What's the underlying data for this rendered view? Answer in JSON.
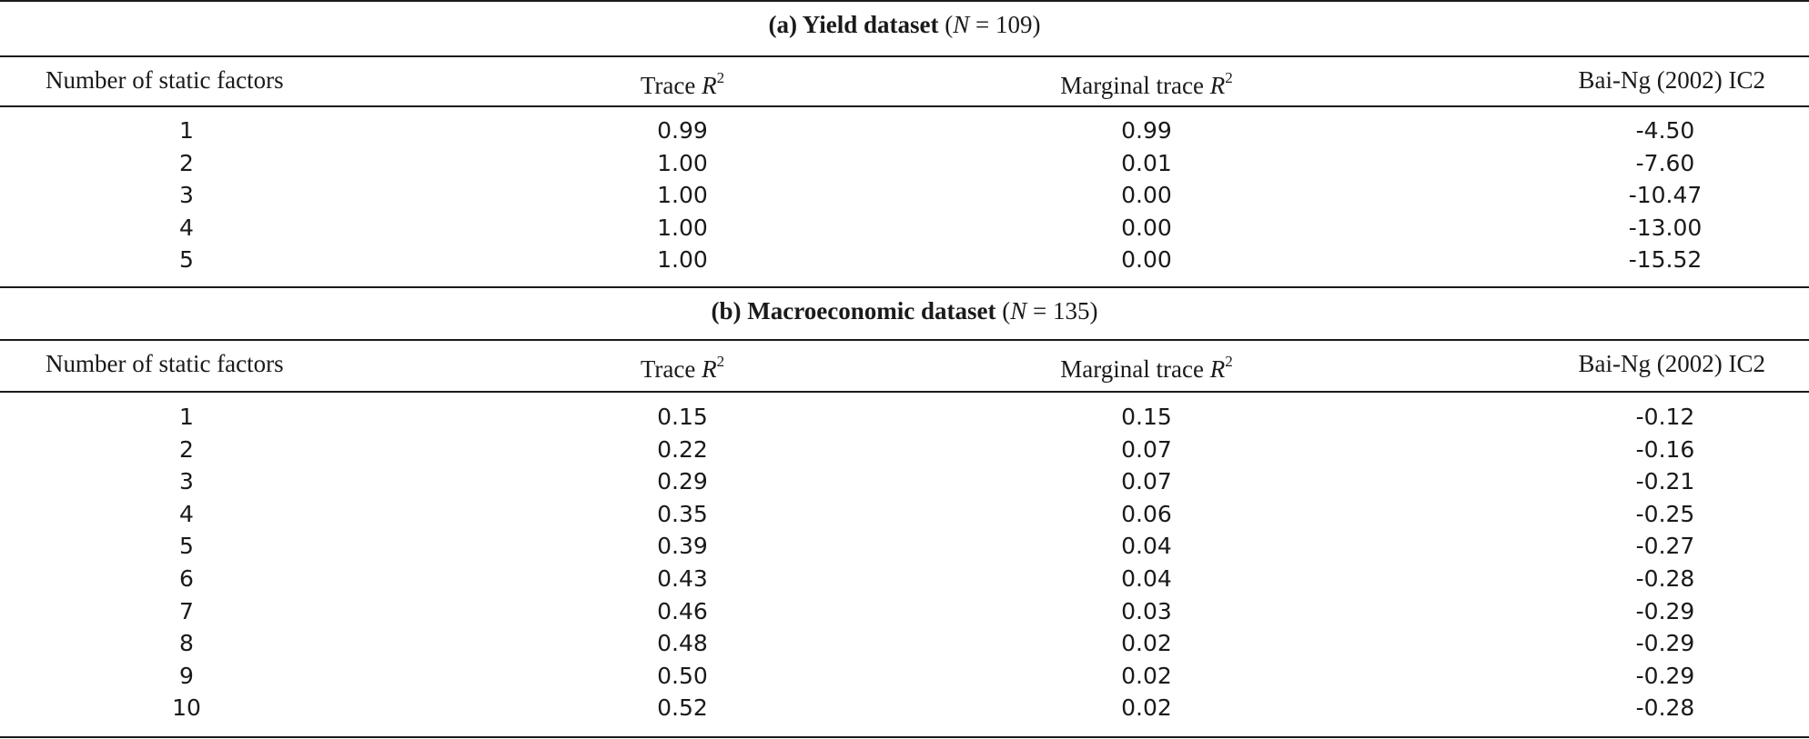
{
  "panels": [
    {
      "label": "(a) Yield dataset",
      "n_prefix": " (",
      "n_var": "N",
      "n_value": " = 109)",
      "headers": {
        "factors": "Number of static factors",
        "trace_prefix": "Trace ",
        "marginal_prefix": "Marginal trace ",
        "r_var": "R",
        "r_sup": "2",
        "ic2": "Bai-Ng (2002) IC2"
      },
      "rows": [
        {
          "factors": "1",
          "trace": "0.99",
          "marginal": "0.99",
          "ic2": "-4.50"
        },
        {
          "factors": "2",
          "trace": "1.00",
          "marginal": "0.01",
          "ic2": "-7.60"
        },
        {
          "factors": "3",
          "trace": "1.00",
          "marginal": "0.00",
          "ic2": "-10.47"
        },
        {
          "factors": "4",
          "trace": "1.00",
          "marginal": "0.00",
          "ic2": "-13.00"
        },
        {
          "factors": "5",
          "trace": "1.00",
          "marginal": "0.00",
          "ic2": "-15.52"
        }
      ]
    },
    {
      "label": "(b) Macroeconomic dataset",
      "n_prefix": " (",
      "n_var": "N",
      "n_value": " = 135)",
      "headers": {
        "factors": "Number of static factors",
        "trace_prefix": "Trace ",
        "marginal_prefix": "Marginal trace ",
        "r_var": "R",
        "r_sup": "2",
        "ic2": "Bai-Ng (2002) IC2"
      },
      "rows": [
        {
          "factors": "1",
          "trace": "0.15",
          "marginal": "0.15",
          "ic2": "-0.12"
        },
        {
          "factors": "2",
          "trace": "0.22",
          "marginal": "0.07",
          "ic2": "-0.16"
        },
        {
          "factors": "3",
          "trace": "0.29",
          "marginal": "0.07",
          "ic2": "-0.21"
        },
        {
          "factors": "4",
          "trace": "0.35",
          "marginal": "0.06",
          "ic2": "-0.25"
        },
        {
          "factors": "5",
          "trace": "0.39",
          "marginal": "0.04",
          "ic2": "-0.27"
        },
        {
          "factors": "6",
          "trace": "0.43",
          "marginal": "0.04",
          "ic2": "-0.28"
        },
        {
          "factors": "7",
          "trace": "0.46",
          "marginal": "0.03",
          "ic2": "-0.29"
        },
        {
          "factors": "8",
          "trace": "0.48",
          "marginal": "0.02",
          "ic2": "-0.29"
        },
        {
          "factors": "9",
          "trace": "0.50",
          "marginal": "0.02",
          "ic2": "-0.29"
        },
        {
          "factors": "10",
          "trace": "0.52",
          "marginal": "0.02",
          "ic2": "-0.28"
        }
      ]
    }
  ]
}
